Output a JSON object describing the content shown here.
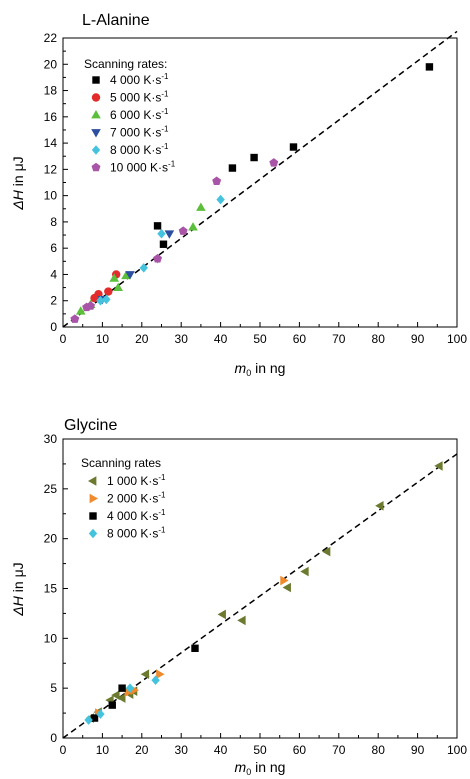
{
  "chart_data": [
    {
      "type": "scatter",
      "title": "L-Alanine",
      "xlabel_main": "m",
      "xlabel_sub": "0",
      "xlabel_rest": " in ng",
      "ylabel_main": "ΔH",
      "ylabel_rest": " in μJ",
      "xlim": [
        0,
        100
      ],
      "ylim": [
        0,
        22
      ],
      "xticks": [
        0,
        10,
        20,
        30,
        40,
        50,
        60,
        70,
        80,
        90,
        100
      ],
      "yticks": [
        0,
        2,
        4,
        6,
        8,
        10,
        12,
        14,
        16,
        18,
        20,
        22
      ],
      "legend_title": "Scanning rates:",
      "legend_placement": "top-left",
      "fit_line": {
        "style": "dashed",
        "x": [
          0,
          100
        ],
        "y": [
          0,
          22.5
        ]
      },
      "series": [
        {
          "name": "4 000 K·s",
          "name_sup": "-1",
          "marker": "square",
          "color": "#000000",
          "points": [
            [
              58.5,
              13.7
            ],
            [
              48.5,
              12.9
            ],
            [
              43,
              12.1
            ],
            [
              93,
              19.8
            ],
            [
              24,
              7.7
            ],
            [
              25.5,
              6.3
            ]
          ]
        },
        {
          "name": "5 000 K·s",
          "name_sup": "-1",
          "marker": "circle",
          "color": "#e32b2b",
          "points": [
            [
              13.5,
              4.0
            ],
            [
              11.5,
              2.7
            ],
            [
              9,
              2.5
            ],
            [
              8,
              2.2
            ]
          ]
        },
        {
          "name": "6 000 K·s",
          "name_sup": "-1",
          "marker": "triangle-up",
          "color": "#5cbf3c",
          "points": [
            [
              35,
              9.1
            ],
            [
              33,
              7.6
            ],
            [
              16,
              3.9
            ],
            [
              14,
              3.0
            ],
            [
              13,
              3.7
            ],
            [
              4.5,
              1.2
            ],
            [
              7,
              1.7
            ]
          ]
        },
        {
          "name": "7 000 K·s",
          "name_sup": "-1",
          "marker": "triangle-down",
          "color": "#2b4ea0",
          "points": [
            [
              27,
              7.1
            ],
            [
              17,
              4.0
            ],
            [
              10,
              2.1
            ]
          ]
        },
        {
          "name": "8 000 K·s",
          "name_sup": "-1",
          "marker": "diamond",
          "color": "#45c3de",
          "points": [
            [
              25,
              7.1
            ],
            [
              40,
              9.7
            ],
            [
              24,
              5.2
            ],
            [
              20.5,
              4.5
            ],
            [
              9.5,
              2.0
            ],
            [
              11,
              2.1
            ]
          ]
        },
        {
          "name": "10 000 K·s",
          "name_sup": "-1",
          "marker": "pentagon",
          "color": "#a855a8",
          "points": [
            [
              39,
              11.1
            ],
            [
              53.5,
              12.5
            ],
            [
              30.5,
              7.3
            ],
            [
              24,
              5.2
            ],
            [
              7,
              1.6
            ],
            [
              6,
              1.5
            ],
            [
              3,
              0.6
            ]
          ]
        }
      ]
    },
    {
      "type": "scatter",
      "title": "Glycine",
      "xlabel_main": "m",
      "xlabel_sub": "0",
      "xlabel_rest": " in ng",
      "ylabel_main": "ΔH",
      "ylabel_rest": " in μJ",
      "xlim": [
        0,
        100
      ],
      "ylim": [
        0,
        30
      ],
      "xticks": [
        0,
        10,
        20,
        30,
        40,
        50,
        60,
        70,
        80,
        90,
        100
      ],
      "yticks": [
        0,
        5,
        10,
        15,
        20,
        25,
        30
      ],
      "legend_title": "Scanning rates",
      "legend_placement": "top-left",
      "fit_line": {
        "style": "dashed",
        "x": [
          0,
          100
        ],
        "y": [
          0,
          28.5
        ]
      },
      "series": [
        {
          "name": "1 000 K·s",
          "name_sup": "-1",
          "marker": "triangle-left",
          "color": "#6b7a2f",
          "points": [
            [
              95.5,
              27.3
            ],
            [
              80.5,
              23.3
            ],
            [
              67,
              18.7
            ],
            [
              61.5,
              16.7
            ],
            [
              57,
              15.1
            ],
            [
              45.5,
              11.8
            ],
            [
              40.5,
              12.4
            ],
            [
              21,
              6.4
            ],
            [
              18,
              4.7
            ],
            [
              17,
              4.4
            ],
            [
              15,
              4.0
            ],
            [
              13.5,
              4.3
            ],
            [
              12,
              3.8
            ],
            [
              9,
              2.6
            ],
            [
              7,
              2.0
            ]
          ]
        },
        {
          "name": "2 000 K·s",
          "name_sup": "-1",
          "marker": "triangle-right",
          "color": "#f08a2c",
          "points": [
            [
              56,
              15.8
            ],
            [
              24.5,
              6.4
            ],
            [
              18,
              4.8
            ],
            [
              16.5,
              4.6
            ],
            [
              9,
              2.5
            ]
          ]
        },
        {
          "name": "4 000 K·s",
          "name_sup": "-1",
          "marker": "square",
          "color": "#000000",
          "points": [
            [
              33.5,
              9.0
            ],
            [
              15,
              5.0
            ],
            [
              12.5,
              3.3
            ],
            [
              8,
              2.0
            ]
          ]
        },
        {
          "name": "8 000 K·s",
          "name_sup": "-1",
          "marker": "diamond",
          "color": "#45c3de",
          "points": [
            [
              23.5,
              5.8
            ],
            [
              17,
              5.0
            ],
            [
              9.5,
              2.4
            ],
            [
              6.5,
              1.8
            ]
          ]
        }
      ]
    }
  ]
}
